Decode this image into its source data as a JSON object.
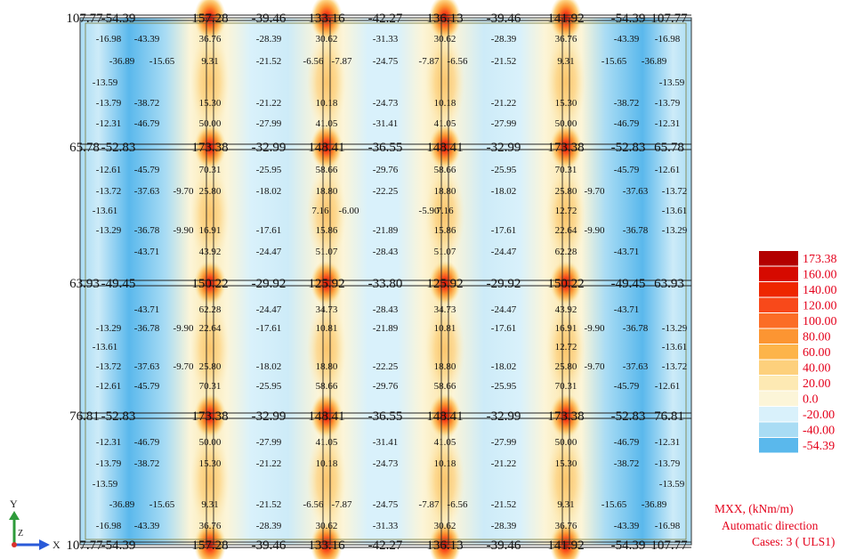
{
  "plot": {
    "big_rows": [
      [
        "107.77",
        "-54.39",
        "157.28",
        "-39.46",
        "133.16",
        "-42.27",
        "136.13",
        "-39.46",
        "141.92",
        "-54.39",
        "107.77"
      ],
      [
        "65.78",
        "-52.83",
        "173.38",
        "-32.99",
        "148.41",
        "-36.55",
        "148.41",
        "-32.99",
        "173.38",
        "-52.83",
        "65.78"
      ],
      [
        "63.93",
        "-49.45",
        "150.22",
        "-29.92",
        "125.92",
        "-33.80",
        "125.92",
        "-29.92",
        "150.22",
        "-49.45",
        "63.93"
      ],
      [
        "76.81",
        "-52.83",
        "173.38",
        "-32.99",
        "148.41",
        "-36.55",
        "148.41",
        "-32.99",
        "173.38",
        "-52.83",
        "76.81"
      ],
      [
        "107.77",
        "-54.39",
        "157.28",
        "-39.46",
        "133.16",
        "-42.27",
        "136.13",
        "-39.46",
        "141.92",
        "-54.39",
        "107.77"
      ]
    ],
    "panel_rows": [
      [
        "-16.98",
        "-43.39",
        "36.76",
        "-28.39",
        "30.62",
        "-31.33",
        "30.62",
        "-28.39",
        "36.76",
        "-43.39",
        "-16.98"
      ],
      [
        "-36.89",
        "-15.65",
        "9.31",
        "-21.52",
        "-6.56",
        "-7.87",
        "-24.75",
        "-7.87",
        "-6.56",
        "-21.52",
        "9.31",
        "-15.65",
        "-36.89"
      ],
      [
        "-13.59",
        "-13.59"
      ],
      [
        "-13.79",
        "-38.72",
        "15.30",
        "-21.22",
        "10.18",
        "-24.73",
        "10.18",
        "-21.22",
        "15.30",
        "-38.72",
        "-13.79"
      ],
      [
        "-12.31",
        "-46.79",
        "50.00",
        "-27.99",
        "41.05",
        "-31.41",
        "41.05",
        "-27.99",
        "50.00",
        "-46.79",
        "-12.31"
      ],
      [
        "-12.61",
        "-45.79",
        "70.31",
        "-25.95",
        "58.66",
        "-29.76",
        "58.66",
        "-25.95",
        "70.31",
        "-45.79",
        "-12.61"
      ],
      [
        "-13.72",
        "-37.63",
        "-9.70",
        "25.80",
        "-18.02",
        "18.80",
        "-22.25",
        "18.80",
        "-18.02",
        "25.80",
        "-9.70",
        "-37.63",
        "-13.72"
      ],
      [
        "-13.61",
        "7.16",
        "-6.00",
        "-5.90",
        "7.16",
        "12.72",
        "-13.61"
      ],
      [
        "-13.29",
        "-36.78",
        "-9.90",
        "16.91",
        "-17.61",
        "15.86",
        "-21.89",
        "15.86",
        "-17.61",
        "22.64",
        "-9.90",
        "-36.78",
        "-13.29"
      ],
      [
        "-43.71",
        "43.92",
        "-24.47",
        "51.07",
        "-28.43",
        "51.07",
        "-24.47",
        "62.28",
        "-43.71"
      ],
      [
        "-43.71",
        "62.28",
        "-24.47",
        "34.73",
        "-28.43",
        "34.73",
        "-24.47",
        "43.92",
        "-43.71"
      ],
      [
        "-13.29",
        "-36.78",
        "-9.90",
        "22.64",
        "-17.61",
        "10.81",
        "-21.89",
        "10.81",
        "-17.61",
        "16.91",
        "-9.90",
        "-36.78",
        "-13.29"
      ],
      [
        "-13.61",
        "12.72",
        "-13.61"
      ],
      [
        "-13.72",
        "-37.63",
        "-9.70",
        "25.80",
        "-18.02",
        "18.80",
        "-22.25",
        "18.80",
        "-18.02",
        "25.80",
        "-9.70",
        "-37.63",
        "-13.72"
      ],
      [
        "-12.61",
        "-45.79",
        "70.31",
        "-25.95",
        "58.66",
        "-29.76",
        "58.66",
        "-25.95",
        "70.31",
        "-45.79",
        "-12.61"
      ],
      [
        "-12.31",
        "-46.79",
        "50.00",
        "-27.99",
        "41.05",
        "-31.41",
        "41.05",
        "-27.99",
        "50.00",
        "-46.79",
        "-12.31"
      ],
      [
        "-13.79",
        "-38.72",
        "15.30",
        "-21.22",
        "10.18",
        "-24.73",
        "10.18",
        "-21.22",
        "15.30",
        "-38.72",
        "-13.79"
      ],
      [
        "-13.59",
        "-13.59"
      ],
      [
        "-36.89",
        "-15.65",
        "9.31",
        "-21.52",
        "-6.56",
        "-7.87",
        "-24.75",
        "-7.87",
        "-6.56",
        "-21.52",
        "9.31",
        "-15.65",
        "-36.89"
      ],
      [
        "-16.98",
        "-43.39",
        "36.76",
        "-28.39",
        "30.62",
        "-31.33",
        "30.62",
        "-28.39",
        "36.76",
        "-43.39",
        "-16.98"
      ]
    ]
  },
  "legend": {
    "entries": [
      {
        "label": "173.38",
        "color": "#b30000"
      },
      {
        "label": "160.00",
        "color": "#d60a00"
      },
      {
        "label": "140.00",
        "color": "#ee2600"
      },
      {
        "label": "120.00",
        "color": "#f8491a"
      },
      {
        "label": "100.00",
        "color": "#fb6d26"
      },
      {
        "label": "80.00",
        "color": "#fc9532"
      },
      {
        "label": "60.00",
        "color": "#fdb44a"
      },
      {
        "label": "40.00",
        "color": "#fdd07c"
      },
      {
        "label": "20.00",
        "color": "#fde9b3"
      },
      {
        "label": "0.0",
        "color": "#fcf5d8"
      },
      {
        "label": "-20.00",
        "color": "#d9f1fb"
      },
      {
        "label": "-40.00",
        "color": "#a9dcf4"
      },
      {
        "label": "-54.39",
        "color": "#5ab8ec"
      }
    ]
  },
  "caption": {
    "line1": "MXX, (kNm/m)",
    "line2": "Automatic direction",
    "line3": "Cases: 3 ( ULS1)"
  },
  "axes": {
    "y_label": "Y",
    "z_label": "Z",
    "x_label": "X"
  }
}
